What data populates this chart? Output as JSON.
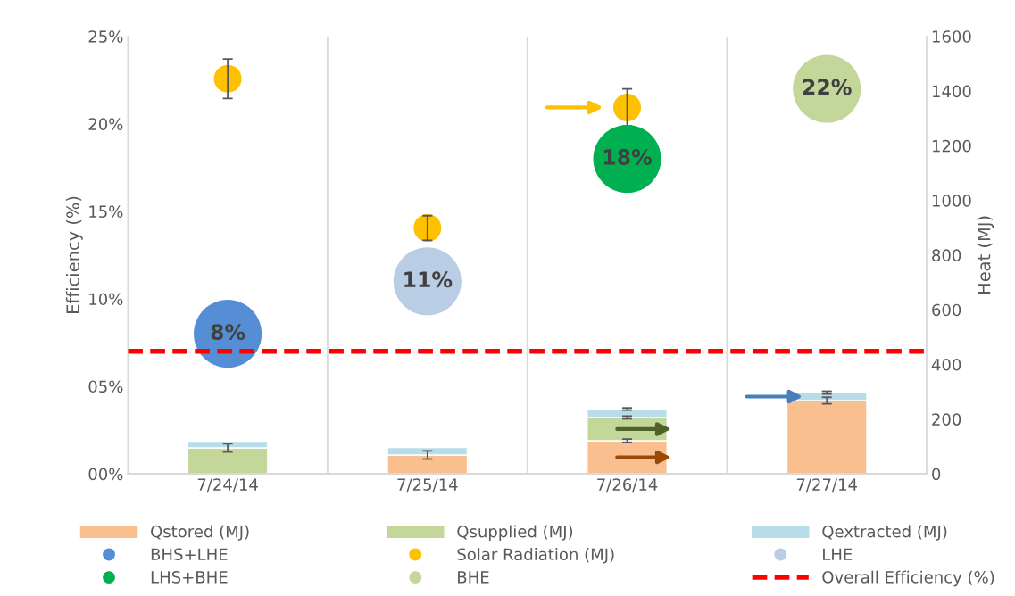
{
  "chart_data": {
    "type": "bar",
    "xlabel": null,
    "ylabel": "Efficiency (%)",
    "y2label": "Heat (MJ)",
    "categories": [
      "7/24/14",
      "7/25/14",
      "7/26/14",
      "7/27/14"
    ],
    "stacked": true,
    "ylim": [
      0,
      25
    ],
    "yticks": [
      {
        "value": 0,
        "label": "00%"
      },
      {
        "value": 5,
        "label": "05%"
      },
      {
        "value": 10,
        "label": "10%"
      },
      {
        "value": 15,
        "label": "15%"
      },
      {
        "value": 20,
        "label": "20%"
      },
      {
        "value": 25,
        "label": "25%"
      }
    ],
    "y2lim": [
      0,
      1600
    ],
    "y2ticks": [
      0,
      200,
      400,
      600,
      800,
      1000,
      1200,
      1400,
      1600
    ],
    "grid": "x",
    "legend": "bottom",
    "series": [
      {
        "name": "Qstored (MJ)",
        "axis": "y2",
        "color": "#f9bf8f",
        "values": [
          0,
          69,
          121,
          268
        ],
        "errors": [
          null,
          15,
          6,
          12
        ]
      },
      {
        "name": "Qsupplied (MJ)",
        "axis": "y2",
        "color": "#c4d79b",
        "values": [
          95,
          0,
          85,
          0
        ],
        "errors": [
          15,
          null,
          5,
          null
        ]
      },
      {
        "name": "Qextracted (MJ)",
        "axis": "y2",
        "color": "#b7dee8",
        "values": [
          24,
          27,
          31,
          29
        ],
        "errors": [
          null,
          null,
          4,
          5
        ]
      },
      {
        "name": "BHS+LHE",
        "type": "bubble",
        "axis": "y",
        "color": "#558ed5",
        "values": [
          8,
          null,
          null,
          null
        ],
        "sizes": [
          1,
          null,
          null,
          null
        ],
        "value_labels": [
          "8%",
          null,
          null,
          null
        ]
      },
      {
        "name": "Solar Radiation (MJ)",
        "type": "scatter",
        "axis": "y2",
        "color": "#ffc000",
        "marker": "circle",
        "values": [
          1445,
          899,
          1340,
          null
        ],
        "errors": [
          72,
          45,
          68,
          null
        ]
      },
      {
        "name": "LHE",
        "type": "bubble",
        "axis": "y",
        "color": "#b9cde5",
        "values": [
          null,
          11,
          null,
          null
        ],
        "sizes": [
          null,
          1,
          null,
          null
        ],
        "value_labels": [
          null,
          "11%",
          null,
          null
        ]
      },
      {
        "name": "LHS+BHE",
        "type": "bubble",
        "axis": "y",
        "color": "#00b050",
        "values": [
          null,
          null,
          18,
          null
        ],
        "sizes": [
          null,
          null,
          1,
          null
        ],
        "value_labels": [
          null,
          null,
          "18%",
          null
        ]
      },
      {
        "name": "BHE",
        "type": "bubble",
        "axis": "y",
        "color": "#c4d79b",
        "values": [
          null,
          null,
          null,
          22
        ],
        "sizes": [
          null,
          null,
          null,
          1
        ],
        "value_labels": [
          null,
          null,
          null,
          "22%"
        ]
      }
    ],
    "ref_lines": [
      {
        "axis": "y",
        "value": 7.0,
        "label": "Overall Efficiency (%)",
        "color": "#ff0000",
        "line_style": "dashed"
      }
    ]
  }
}
